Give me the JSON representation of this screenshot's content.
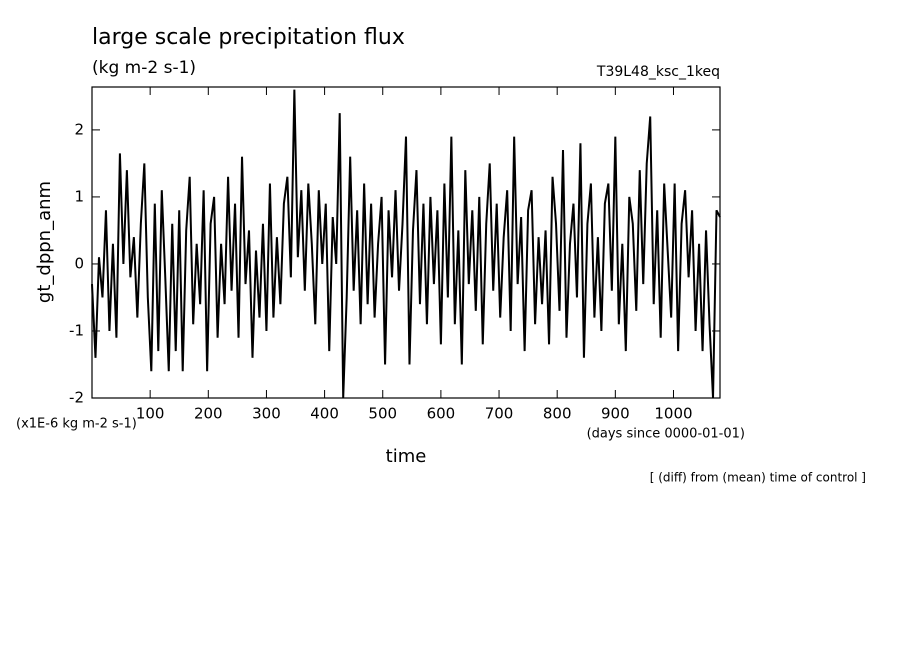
{
  "chart_data": {
    "type": "line",
    "title": "large scale precipitation flux",
    "subtitle": "(kg m-2 s-1)",
    "run_label": "T39L48_ksc_1keq",
    "y_label": "gt_dppn_anm",
    "y_units": "(x1E-6 kg m-2 s-1)",
    "x_units": "(days since 0000-01-01)",
    "x_label": "time",
    "note": "[ (diff) from (mean) time of control ]",
    "xlim": [
      0,
      1080
    ],
    "xticks": [
      100,
      200,
      300,
      400,
      500,
      600,
      700,
      800,
      900,
      1000
    ],
    "ylim": [
      -2,
      2.64
    ],
    "yticks": [
      -2,
      -1,
      0,
      1,
      2
    ],
    "color": "#000000",
    "x": [
      0,
      6,
      12,
      18,
      24,
      30,
      36,
      42,
      48,
      54,
      60,
      66,
      72,
      78,
      84,
      90,
      96,
      102,
      108,
      114,
      120,
      126,
      132,
      138,
      144,
      150,
      156,
      162,
      168,
      174,
      180,
      186,
      192,
      198,
      204,
      210,
      216,
      222,
      228,
      234,
      240,
      246,
      252,
      258,
      264,
      270,
      276,
      282,
      288,
      294,
      300,
      306,
      312,
      318,
      324,
      330,
      336,
      342,
      348,
      354,
      360,
      366,
      372,
      378,
      384,
      390,
      396,
      402,
      408,
      414,
      420,
      426,
      432,
      438,
      444,
      450,
      456,
      462,
      468,
      474,
      480,
      486,
      492,
      498,
      504,
      510,
      516,
      522,
      528,
      534,
      540,
      546,
      552,
      558,
      564,
      570,
      576,
      582,
      588,
      594,
      600,
      606,
      612,
      618,
      624,
      630,
      636,
      642,
      648,
      654,
      660,
      666,
      672,
      678,
      684,
      690,
      696,
      702,
      708,
      714,
      720,
      726,
      732,
      738,
      744,
      750,
      756,
      762,
      768,
      774,
      780,
      786,
      792,
      798,
      804,
      810,
      816,
      822,
      828,
      834,
      840,
      846,
      852,
      858,
      864,
      870,
      876,
      882,
      888,
      894,
      900,
      906,
      912,
      918,
      924,
      930,
      936,
      942,
      948,
      954,
      960,
      966,
      972,
      978,
      984,
      990,
      996,
      1002,
      1008,
      1014,
      1020,
      1026,
      1032,
      1038,
      1044,
      1050,
      1056,
      1062,
      1068,
      1074,
      1080
    ],
    "values": [
      -0.3,
      -1.4,
      0.1,
      -0.5,
      0.8,
      -1.0,
      0.3,
      -1.1,
      1.65,
      0.0,
      1.4,
      -0.2,
      0.4,
      -0.8,
      0.6,
      1.5,
      -0.5,
      -1.6,
      0.9,
      -1.3,
      1.1,
      -0.2,
      -1.6,
      0.6,
      -1.3,
      0.8,
      -1.6,
      0.5,
      1.3,
      -0.9,
      0.3,
      -0.6,
      1.1,
      -1.6,
      0.6,
      1.0,
      -1.1,
      0.3,
      -0.6,
      1.3,
      -0.4,
      0.9,
      -1.1,
      1.6,
      -0.3,
      0.5,
      -1.4,
      0.2,
      -0.8,
      0.6,
      -1.0,
      1.2,
      -0.8,
      0.4,
      -0.6,
      0.9,
      1.3,
      -0.2,
      2.6,
      0.1,
      1.1,
      -0.4,
      1.2,
      0.3,
      -0.9,
      1.1,
      0.0,
      0.9,
      -1.3,
      0.7,
      0.0,
      2.25,
      -2.0,
      -0.5,
      1.6,
      -0.4,
      0.8,
      -0.9,
      1.2,
      -0.6,
      0.9,
      -0.8,
      0.3,
      1.0,
      -1.5,
      0.8,
      -0.2,
      1.1,
      -0.4,
      0.6,
      1.9,
      -1.5,
      0.5,
      1.4,
      -0.6,
      0.9,
      -0.9,
      1.0,
      -0.3,
      0.8,
      -1.2,
      1.2,
      -0.5,
      1.9,
      -0.9,
      0.5,
      -1.5,
      1.4,
      -0.3,
      0.8,
      -0.7,
      1.0,
      -1.2,
      0.6,
      1.5,
      -0.4,
      0.9,
      -0.8,
      0.4,
      1.1,
      -1.0,
      1.9,
      -0.3,
      0.7,
      -1.3,
      0.8,
      1.1,
      -0.9,
      0.4,
      -0.6,
      0.5,
      -1.2,
      1.3,
      0.6,
      -0.7,
      1.7,
      -1.1,
      0.3,
      0.9,
      -0.5,
      1.8,
      -1.4,
      0.6,
      1.2,
      -0.8,
      0.4,
      -1.0,
      0.9,
      1.2,
      -0.4,
      1.9,
      -0.9,
      0.3,
      -1.3,
      1.0,
      0.6,
      -0.7,
      1.4,
      -0.3,
      1.5,
      2.2,
      -0.6,
      0.8,
      -1.1,
      1.2,
      0.2,
      -0.8,
      1.2,
      -1.3,
      0.6,
      1.1,
      -0.2,
      0.8,
      -1.0,
      0.3,
      -1.3,
      0.5,
      -0.9,
      -2.0,
      0.8,
      0.7
    ]
  }
}
